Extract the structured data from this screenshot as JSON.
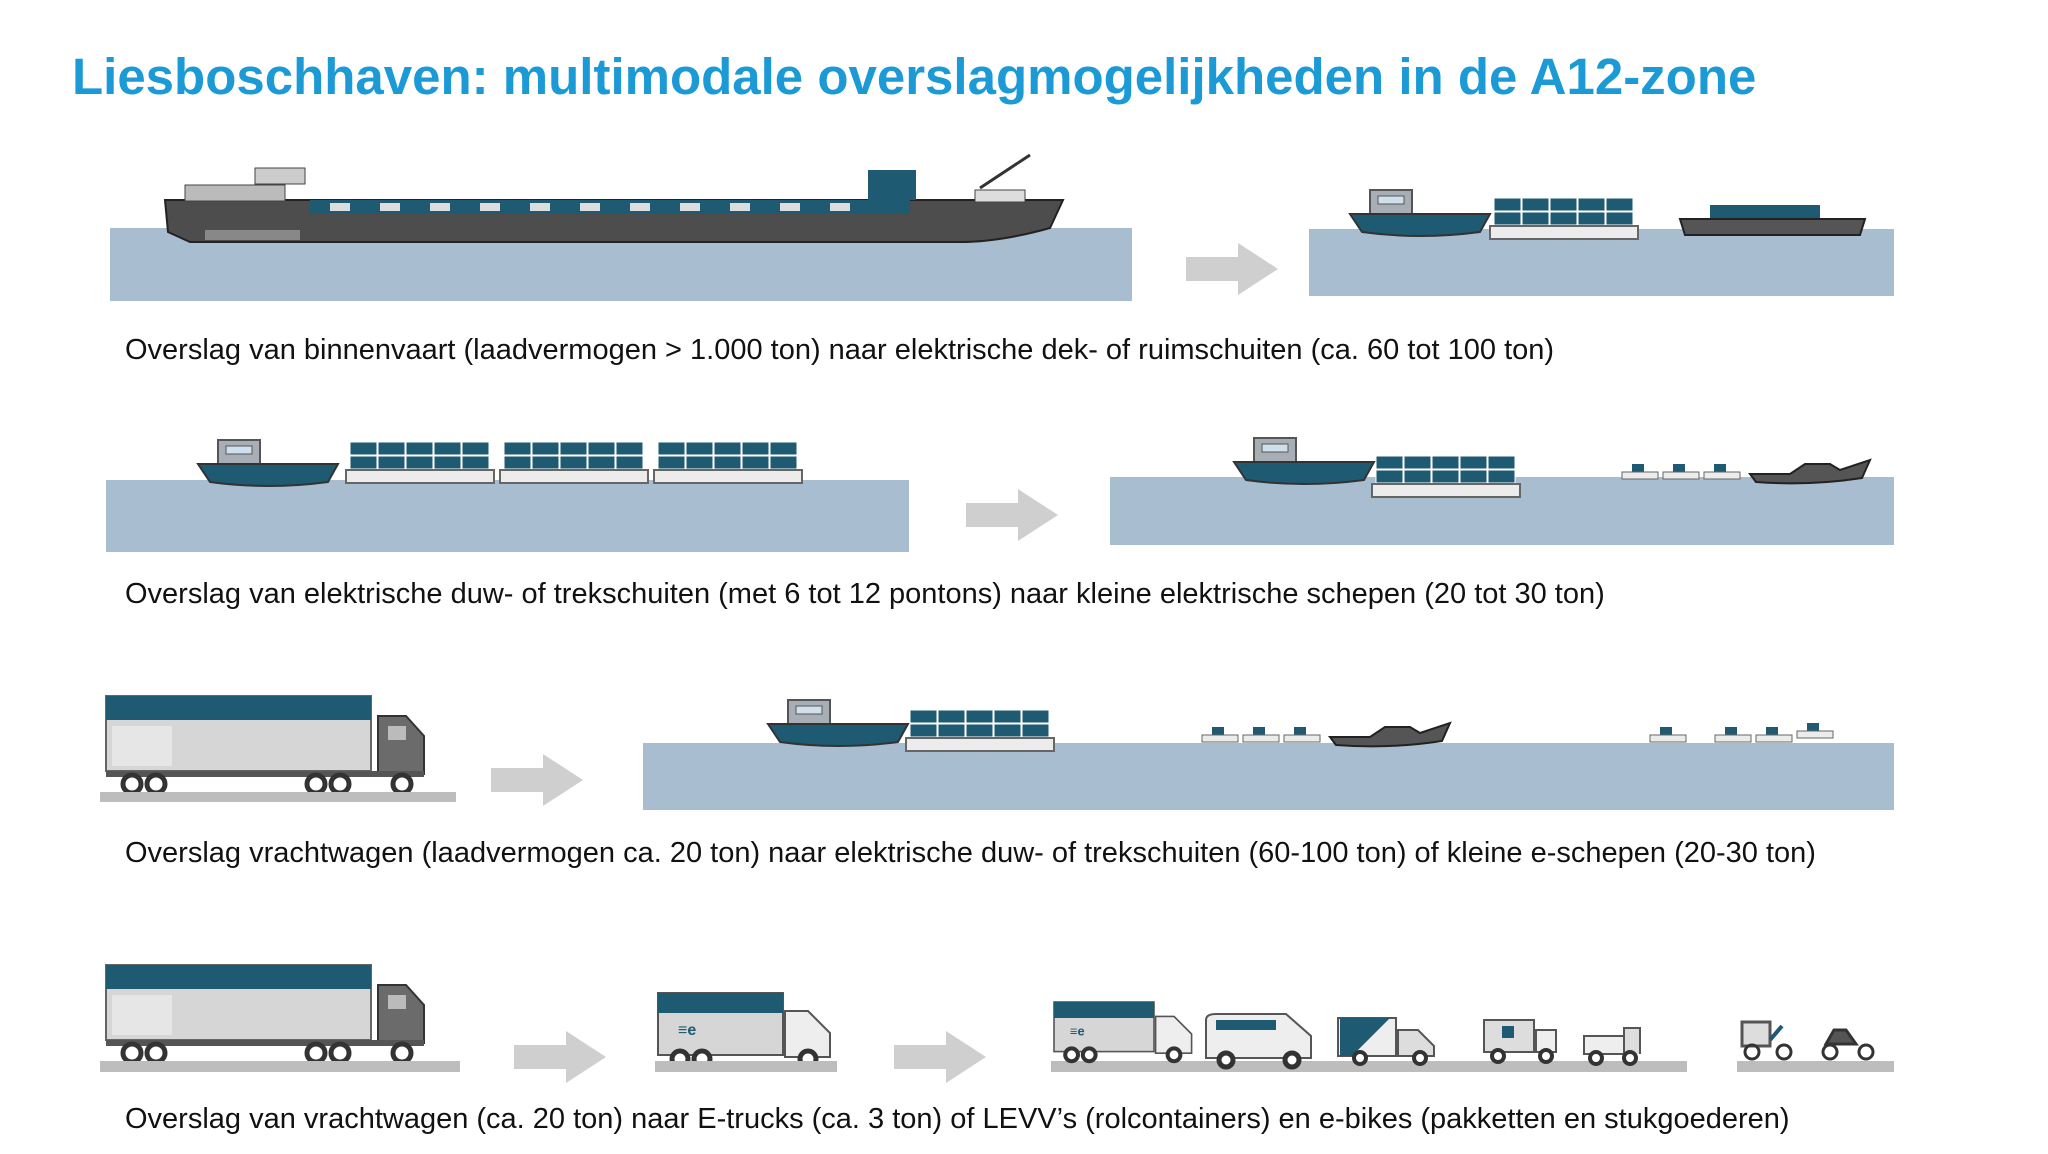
{
  "header": {
    "title": "Liesboschhaven: multimodale overslagmogelijkheden in de A12-zone"
  },
  "rows": [
    {
      "caption": "Overslag van binnenvaart (laadvermogen > 1.000 ton) naar elektrische dek- of ruimschuiten (ca. 60 tot 100 ton)"
    },
    {
      "caption": "Overslag van elektrische duw- of trekschuiten (met 6 tot 12 pontons) naar kleine elektrische schepen (20 tot 30 ton)"
    },
    {
      "caption": "Overslag vrachtwagen (laadvermogen ca. 20 ton) naar elektrische duw- of trekschuiten (60-100 ton) of kleine e-schepen (20-30 ton)"
    },
    {
      "caption": "Overslag van vrachtwagen (ca. 20 ton) naar E-trucks (ca. 3 ton) of LEVV’s (rolcontainers) en e-bikes (pakketten en stukgoederen)"
    }
  ]
}
